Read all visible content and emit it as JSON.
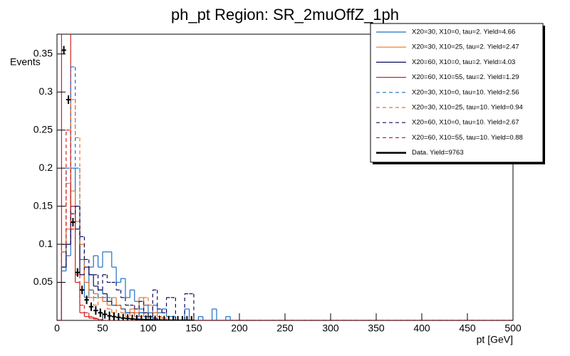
{
  "chart_data": {
    "type": "histogram",
    "title": "ph_pt Region: SR_2muOffZ_1ph",
    "x_label": "pt [GeV]",
    "y_label": "Events",
    "bins": [
      0,
      5,
      10,
      15,
      20,
      25,
      30,
      35,
      40,
      45,
      50,
      55,
      60,
      65,
      70,
      75,
      80,
      85,
      90,
      95,
      100,
      105,
      110,
      115,
      120,
      125,
      130,
      135,
      140,
      145,
      150,
      155,
      160,
      165,
      170,
      175,
      180,
      185,
      190,
      195,
      200,
      500
    ],
    "xlim": [
      0,
      500
    ],
    "xticks": [
      0,
      50,
      100,
      150,
      200,
      250,
      300,
      350,
      400,
      450,
      500
    ],
    "ylim": [
      0,
      0.376
    ],
    "yticks": [
      0.05,
      0.1,
      0.15,
      0.2,
      0.25,
      0.3,
      0.35
    ],
    "legend": "top-right",
    "series": [
      {
        "name": "X20=30, X10=0, tau=2. Yield=4.66",
        "color": "#1f6fc7",
        "dashed": false,
        "values": [
          0,
          0.065,
          0.085,
          0.2,
          0.15,
          0.08,
          0.03,
          0.07,
          0.085,
          0.07,
          0.09,
          0.09,
          0.07,
          0.05,
          0.055,
          0.03,
          0.04,
          0.025,
          0.015,
          0.02,
          0.01,
          0.02,
          0.01,
          0.015,
          0.005,
          0.005,
          0,
          0,
          0.015,
          0,
          0,
          0.005,
          0,
          0,
          0.015,
          0,
          0,
          0.005,
          0,
          0,
          0
        ]
      },
      {
        "name": "X20=30, X10=25, tau=2. Yield=2.47",
        "color": "#f07020",
        "dashed": false,
        "values": [
          0,
          0.09,
          0.12,
          0.17,
          0.13,
          0.06,
          0.05,
          0.04,
          0.035,
          0.03,
          0.025,
          0.02,
          0.03,
          0.02,
          0.015,
          0.01,
          0.015,
          0.01,
          0.03,
          0.01,
          0.005,
          0.01,
          0.005,
          0.003,
          0,
          0,
          0,
          0,
          0,
          0,
          0,
          0,
          0,
          0,
          0,
          0,
          0,
          0,
          0,
          0,
          0
        ]
      },
      {
        "name": "X20=60, X10=0, tau=2. Yield=4.03",
        "color": "#0c0c5e",
        "dashed": false,
        "values": [
          0,
          0.07,
          0.1,
          0.15,
          0.12,
          0.06,
          0.07,
          0.06,
          0.045,
          0.04,
          0.035,
          0.025,
          0.02,
          0.02,
          0.015,
          0.01,
          0.01,
          0.005,
          0.01,
          0.005,
          0.005,
          0.003,
          0,
          0,
          0,
          0,
          0,
          0,
          0,
          0,
          0,
          0,
          0,
          0,
          0,
          0,
          0,
          0,
          0,
          0,
          0
        ]
      },
      {
        "name": "X20=60, X10=55, tau=2. Yield=1.29",
        "color": "#d42020",
        "dashed": false,
        "values": [
          0,
          0.38,
          0.38,
          0.15,
          0.05,
          0.01,
          0.005,
          0.003,
          0.002,
          0.001,
          0,
          0,
          0,
          0,
          0,
          0,
          0,
          0,
          0,
          0,
          0,
          0,
          0,
          0,
          0,
          0,
          0,
          0,
          0,
          0,
          0,
          0,
          0,
          0,
          0,
          0,
          0,
          0,
          0,
          0,
          0
        ]
      },
      {
        "name": "X20=30, X10=0, tau=10. Yield=2.56",
        "color": "#1f6fc7",
        "dashed": true,
        "values": [
          0,
          0.09,
          0.2,
          0.333,
          0.2,
          0.1,
          0.05,
          0.04,
          0.03,
          0.04,
          0.03,
          0.03,
          0.02,
          0.02,
          0.015,
          0.01,
          0.01,
          0.005,
          0.01,
          0.005,
          0.005,
          0,
          0,
          0,
          0,
          0,
          0,
          0,
          0,
          0,
          0,
          0,
          0,
          0,
          0,
          0,
          0,
          0,
          0,
          0,
          0
        ]
      },
      {
        "name": "X20=30, X10=25, tau=10. Yield=0.94",
        "color": "#f07020",
        "dashed": true,
        "values": [
          0,
          0.09,
          0.18,
          0.29,
          0.24,
          0.1,
          0.05,
          0.03,
          0.02,
          0.03,
          0.025,
          0.015,
          0.01,
          0.02,
          0.01,
          0.005,
          0.01,
          0.005,
          0.005,
          0.03,
          0.02,
          0.01,
          0.005,
          0,
          0,
          0,
          0,
          0,
          0,
          0,
          0,
          0,
          0,
          0,
          0,
          0,
          0,
          0,
          0,
          0,
          0
        ]
      },
      {
        "name": "X20=60, X10=0, tau=10. Yield=2.67",
        "color": "#0c0c5e",
        "dashed": true,
        "values": [
          0,
          0.07,
          0.1,
          0.14,
          0.15,
          0.11,
          0.08,
          0.06,
          0.06,
          0.04,
          0.06,
          0.05,
          0.05,
          0.04,
          0.03,
          0.02,
          0.02,
          0.015,
          0.025,
          0.01,
          0.005,
          0.04,
          0.015,
          0.01,
          0.03,
          0.03,
          0,
          0,
          0.035,
          0.035,
          0,
          0,
          0,
          0,
          0,
          0,
          0,
          0,
          0,
          0,
          0
        ]
      },
      {
        "name": "X20=60, X10=55, tau=10. Yield=0.88",
        "color": "#d42020",
        "dashed": true,
        "values": [
          0,
          0.1,
          0.25,
          0.12,
          0.06,
          0.02,
          0.01,
          0.005,
          0.003,
          0,
          0,
          0,
          0,
          0,
          0,
          0,
          0,
          0,
          0,
          0,
          0,
          0,
          0,
          0,
          0,
          0,
          0,
          0,
          0,
          0,
          0,
          0,
          0,
          0,
          0,
          0,
          0,
          0,
          0,
          0,
          0
        ]
      },
      {
        "name": "Data. Yield=9763",
        "color": "#000000",
        "dashed": false,
        "style": "points",
        "values": [
          0,
          0.355,
          0.29,
          0.129,
          0.063,
          0.04,
          0.027,
          0.018,
          0.013,
          0.01,
          0.008,
          0.006,
          0.005,
          0.004,
          0.003,
          0.0025,
          0.002,
          0.0015,
          0.0012,
          0.001,
          0.0008,
          0.0006,
          0.0005,
          0.0004,
          0.0003,
          0.0003,
          0.0002,
          0.0002,
          0.0002,
          0.0001,
          0,
          0,
          0,
          0,
          0,
          0,
          0,
          0,
          0,
          0,
          0
        ]
      }
    ]
  }
}
